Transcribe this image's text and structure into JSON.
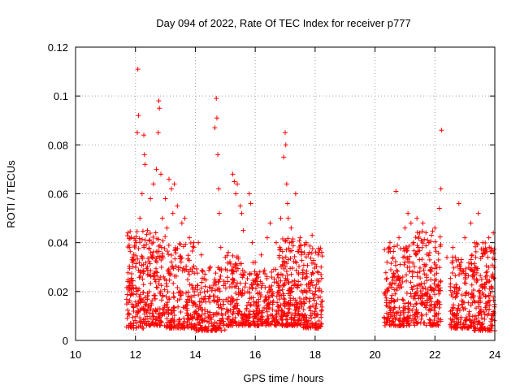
{
  "chart_data": {
    "type": "scatter",
    "title": "Day 094 of 2022, Rate Of TEC Index for receiver p777",
    "xlabel": "GPS time / hours",
    "ylabel": "ROTI / TECUs",
    "xlim": [
      10,
      24
    ],
    "ylim": [
      0,
      0.12
    ],
    "x_ticks": [
      "10",
      "12",
      "14",
      "16",
      "18",
      "20",
      "22",
      "24"
    ],
    "y_ticks": [
      "0",
      "0.02",
      "0.04",
      "0.06",
      "0.08",
      "0.1",
      "0.12"
    ],
    "grid": true,
    "marker": "+",
    "color": "#ff0000",
    "series": [
      {
        "name": "ROTI",
        "points": [
          [
            11.75,
            0.044
          ],
          [
            11.8,
            0.038
          ],
          [
            11.9,
            0.034
          ],
          [
            12.02,
            0.04
          ],
          [
            12.06,
            0.085
          ],
          [
            12.08,
            0.111
          ],
          [
            12.1,
            0.092
          ],
          [
            12.15,
            0.05
          ],
          [
            12.22,
            0.06
          ],
          [
            12.28,
            0.084
          ],
          [
            12.3,
            0.076
          ],
          [
            12.32,
            0.072
          ],
          [
            12.4,
            0.045
          ],
          [
            12.5,
            0.058
          ],
          [
            12.6,
            0.064
          ],
          [
            12.7,
            0.07
          ],
          [
            12.76,
            0.085
          ],
          [
            12.78,
            0.098
          ],
          [
            12.8,
            0.095
          ],
          [
            12.85,
            0.068
          ],
          [
            12.9,
            0.05
          ],
          [
            13.0,
            0.058
          ],
          [
            13.05,
            0.046
          ],
          [
            13.12,
            0.066
          ],
          [
            13.2,
            0.062
          ],
          [
            13.25,
            0.052
          ],
          [
            13.3,
            0.064
          ],
          [
            13.4,
            0.055
          ],
          [
            13.55,
            0.048
          ],
          [
            13.65,
            0.05
          ],
          [
            13.8,
            0.042
          ],
          [
            13.95,
            0.04
          ],
          [
            14.1,
            0.04
          ],
          [
            14.2,
            0.035
          ],
          [
            14.5,
            0.03
          ],
          [
            14.65,
            0.087
          ],
          [
            14.7,
            0.099
          ],
          [
            14.72,
            0.091
          ],
          [
            14.75,
            0.076
          ],
          [
            14.78,
            0.062
          ],
          [
            14.8,
            0.052
          ],
          [
            14.85,
            0.038
          ],
          [
            15.0,
            0.034
          ],
          [
            15.1,
            0.036
          ],
          [
            15.25,
            0.068
          ],
          [
            15.3,
            0.065
          ],
          [
            15.35,
            0.06
          ],
          [
            15.4,
            0.064
          ],
          [
            15.5,
            0.055
          ],
          [
            15.55,
            0.052
          ],
          [
            15.6,
            0.045
          ],
          [
            15.8,
            0.06
          ],
          [
            15.85,
            0.056
          ],
          [
            15.9,
            0.04
          ],
          [
            16.0,
            0.032
          ],
          [
            16.2,
            0.035
          ],
          [
            16.4,
            0.042
          ],
          [
            16.5,
            0.048
          ],
          [
            16.7,
            0.04
          ],
          [
            16.85,
            0.05
          ],
          [
            16.95,
            0.075
          ],
          [
            17.0,
            0.085
          ],
          [
            17.02,
            0.08
          ],
          [
            17.05,
            0.064
          ],
          [
            17.08,
            0.056
          ],
          [
            17.1,
            0.05
          ],
          [
            17.2,
            0.046
          ],
          [
            17.35,
            0.06
          ],
          [
            17.5,
            0.042
          ],
          [
            17.7,
            0.04
          ],
          [
            17.9,
            0.043
          ],
          [
            18.1,
            0.035
          ],
          [
            18.2,
            0.03
          ],
          [
            20.4,
            0.032
          ],
          [
            20.5,
            0.04
          ],
          [
            20.7,
            0.061
          ],
          [
            20.8,
            0.042
          ],
          [
            21.0,
            0.046
          ],
          [
            21.1,
            0.052
          ],
          [
            21.2,
            0.048
          ],
          [
            21.4,
            0.05
          ],
          [
            21.6,
            0.048
          ],
          [
            21.8,
            0.04
          ],
          [
            22.0,
            0.046
          ],
          [
            22.15,
            0.054
          ],
          [
            22.2,
            0.062
          ],
          [
            22.22,
            0.086
          ],
          [
            22.4,
            0.034
          ],
          [
            22.6,
            0.038
          ],
          [
            22.8,
            0.056
          ],
          [
            23.0,
            0.042
          ],
          [
            23.2,
            0.048
          ],
          [
            23.45,
            0.052
          ],
          [
            23.6,
            0.04
          ],
          [
            23.8,
            0.042
          ],
          [
            23.95,
            0.044
          ]
        ],
        "clusters": [
          {
            "x": [
              11.7,
              12.3
            ],
            "y": [
              0.005,
              0.045
            ],
            "n": 150
          },
          {
            "x": [
              12.3,
              13.0
            ],
            "y": [
              0.006,
              0.045
            ],
            "n": 170
          },
          {
            "x": [
              13.0,
              14.0
            ],
            "y": [
              0.005,
              0.04
            ],
            "n": 210
          },
          {
            "x": [
              14.0,
              15.0
            ],
            "y": [
              0.004,
              0.03
            ],
            "n": 190
          },
          {
            "x": [
              15.0,
              16.0
            ],
            "y": [
              0.006,
              0.035
            ],
            "n": 200
          },
          {
            "x": [
              16.0,
              16.8
            ],
            "y": [
              0.006,
              0.03
            ],
            "n": 160
          },
          {
            "x": [
              16.8,
              17.6
            ],
            "y": [
              0.006,
              0.042
            ],
            "n": 220
          },
          {
            "x": [
              17.6,
              18.25
            ],
            "y": [
              0.005,
              0.04
            ],
            "n": 150
          },
          {
            "x": [
              20.3,
              21.2
            ],
            "y": [
              0.006,
              0.04
            ],
            "n": 200
          },
          {
            "x": [
              21.2,
              22.2
            ],
            "y": [
              0.006,
              0.045
            ],
            "n": 230
          },
          {
            "x": [
              22.5,
              23.3
            ],
            "y": [
              0.005,
              0.035
            ],
            "n": 170
          },
          {
            "x": [
              23.3,
              24.0
            ],
            "y": [
              0.004,
              0.04
            ],
            "n": 180
          }
        ]
      }
    ]
  }
}
